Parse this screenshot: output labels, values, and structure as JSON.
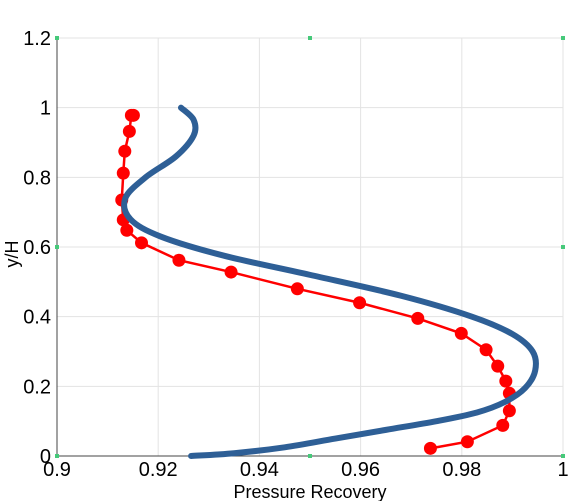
{
  "chart_data": {
    "type": "line",
    "xlabel": "Pressure Recovery",
    "ylabel": "y/H",
    "xlim": [
      0.9,
      1.0
    ],
    "ylim": [
      0,
      1.2
    ],
    "x_ticks": [
      0.9,
      0.92,
      0.94,
      0.96,
      0.98,
      1.0
    ],
    "x_tick_labels": [
      "0.9",
      "0.92",
      "0.94",
      "0.96",
      "0.98",
      "1"
    ],
    "y_ticks": [
      0,
      0.2,
      0.4,
      0.6,
      0.8,
      1.0,
      1.2
    ],
    "y_tick_labels": [
      "0",
      "0.2",
      "0.4",
      "0.6",
      "0.8",
      "1",
      "1.2"
    ],
    "grid": true,
    "legend": "none",
    "series": [
      {
        "style": "line-with-markers",
        "color": "#ff0000",
        "x": [
          0.9738,
          0.9811,
          0.9881,
          0.9894,
          0.9894,
          0.9887,
          0.9871,
          0.9848,
          0.9799,
          0.9713,
          0.9598,
          0.9475,
          0.9344,
          0.9241,
          0.9167,
          0.9138,
          0.9131,
          0.9128,
          0.9131,
          0.9134,
          0.9143,
          0.9147,
          0.9151
        ],
        "y": [
          0.022,
          0.041,
          0.088,
          0.13,
          0.18,
          0.215,
          0.258,
          0.305,
          0.352,
          0.395,
          0.44,
          0.48,
          0.528,
          0.562,
          0.612,
          0.648,
          0.678,
          0.735,
          0.812,
          0.875,
          0.932,
          0.978,
          0.978
        ]
      },
      {
        "style": "line",
        "color": "#2e5f96",
        "x": [
          0.9265,
          0.935,
          0.945,
          0.955,
          0.965,
          0.975,
          0.983,
          0.9885,
          0.9925,
          0.9945,
          0.994,
          0.99,
          0.982,
          0.968,
          0.95,
          0.933,
          0.9205,
          0.9145,
          0.9135,
          0.9175,
          0.9235,
          0.927,
          0.927,
          0.9245
        ],
        "y": [
          0.0,
          0.008,
          0.025,
          0.05,
          0.075,
          0.1,
          0.125,
          0.155,
          0.195,
          0.245,
          0.3,
          0.35,
          0.4,
          0.46,
          0.52,
          0.575,
          0.63,
          0.68,
          0.74,
          0.8,
          0.86,
          0.92,
          0.965,
          1.0
        ]
      }
    ]
  }
}
